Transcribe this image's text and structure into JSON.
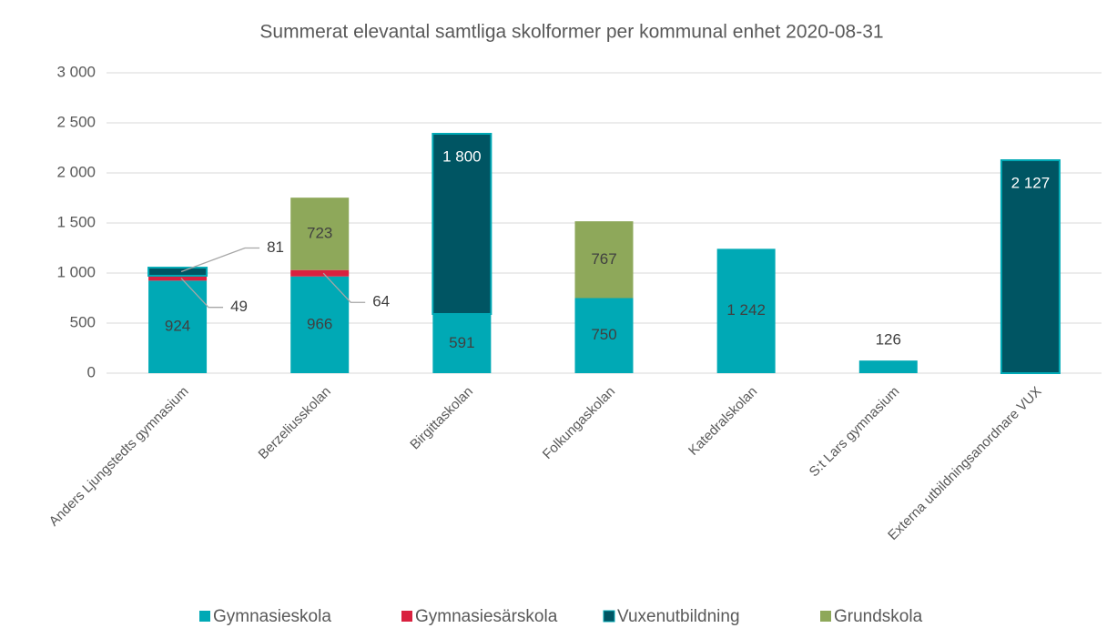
{
  "chart_data": {
    "type": "stacked_bar",
    "title": "Summerat elevantal samtliga skolformer  per kommunal enhet 2020-08-31",
    "categories": [
      "Anders Ljungstedts gymnasium",
      "Berzeliusskolan",
      "Birgittaskolan",
      "Folkungaskolan",
      "Katedralskolan",
      "S:t Lars gymnasium",
      "Externa utbildningsanordnare VUX"
    ],
    "series": [
      {
        "name": "Gymnasieskola",
        "color": "#00a9b5",
        "values": [
          924,
          966,
          591,
          750,
          1242,
          126,
          null
        ],
        "value_labels": [
          "924",
          "966",
          "591",
          "750",
          "1 242",
          "126",
          null
        ]
      },
      {
        "name": "Gymnasiesärskola",
        "color": "#d9213f",
        "values": [
          49,
          64,
          null,
          null,
          null,
          null,
          null
        ],
        "value_labels": [
          "49",
          "64",
          null,
          null,
          null,
          null,
          null
        ]
      },
      {
        "name": "Vuxenutbildning",
        "color": "#005563",
        "values": [
          81,
          null,
          1800,
          null,
          null,
          null,
          2127
        ],
        "value_labels": [
          "81",
          null,
          "1 800",
          null,
          null,
          null,
          "2 127"
        ]
      },
      {
        "name": "Grundskola",
        "color": "#8ea85a",
        "values": [
          null,
          723,
          null,
          767,
          null,
          null,
          null
        ],
        "value_labels": [
          null,
          "723",
          null,
          "767",
          null,
          null,
          null
        ]
      }
    ],
    "ylim": [
      0,
      3000
    ],
    "yticks": [
      0,
      500,
      {
        "value": 1000,
        "label": "1 000"
      },
      {
        "value": 1500,
        "label": "1 500"
      },
      {
        "value": 2000,
        "label": "2 000"
      },
      {
        "value": 2500,
        "label": "2 500"
      },
      {
        "value": 3000,
        "label": "3 000"
      }
    ],
    "grid": true,
    "legend": "bottom"
  }
}
